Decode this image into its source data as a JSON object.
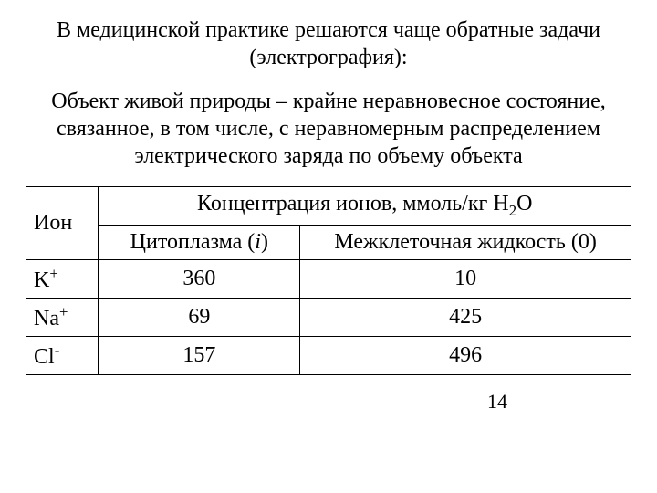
{
  "paragraphs": {
    "p1": "В медицинской практике решаются чаще обратные задачи (электрография):",
    "p2": "Объект живой природы – крайне неравновесное состояние, связанное, в том числе, с неравномерным распределением электрического заряда по объему объекта"
  },
  "table": {
    "header": {
      "ion": "Ион",
      "conc_pre": "Концентрация ионов, ммоль/кг Н",
      "conc_sub": "2",
      "conc_post": "О",
      "cyto_pre": "Цитоплазма (",
      "cyto_ital": "i",
      "cyto_post": ")",
      "extra": "Межклеточная жидкость (0)"
    },
    "rows": [
      {
        "ion_base": "K",
        "ion_charge": "+",
        "cyto": "360",
        "extra": "10"
      },
      {
        "ion_base": "Na",
        "ion_charge": "+",
        "cyto": "69",
        "extra": "425"
      },
      {
        "ion_base": "Cl",
        "ion_charge": "-",
        "cyto": "157",
        "extra": "496"
      }
    ]
  },
  "page_number": "14",
  "colors": {
    "text": "#000000",
    "background": "#ffffff",
    "border": "#000000"
  },
  "fonts": {
    "body_family": "Times New Roman",
    "body_size_pt": 18
  }
}
